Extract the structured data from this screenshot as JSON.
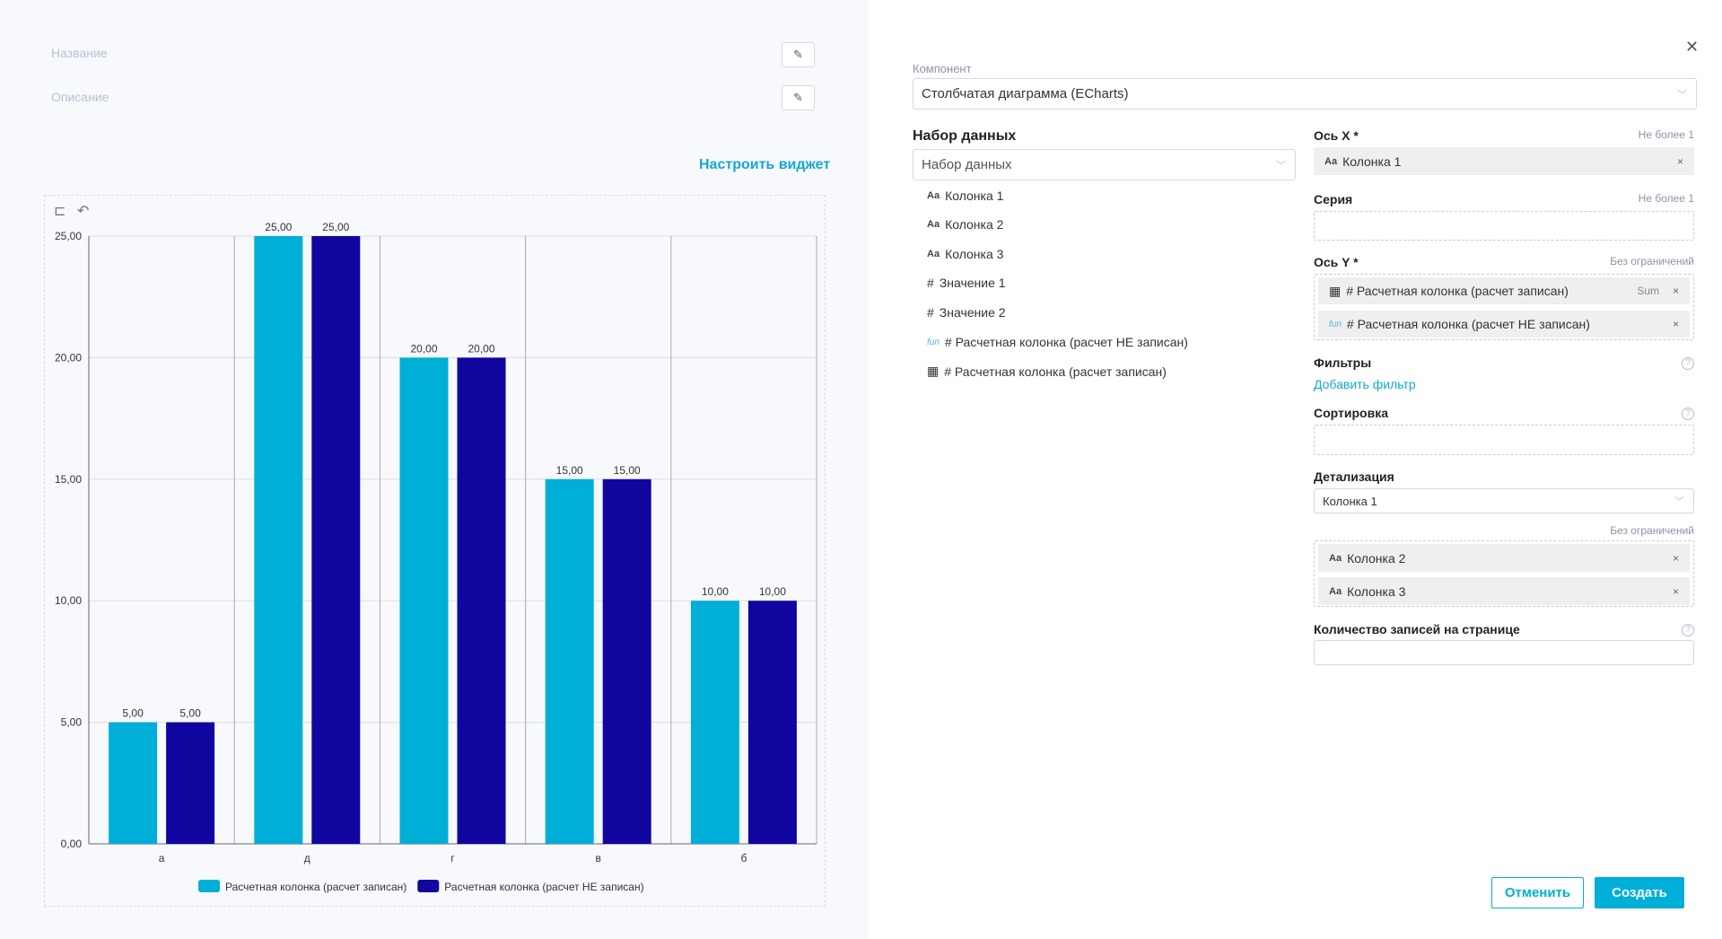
{
  "widget": {
    "title_placeholder": "Название",
    "description_placeholder": "Описание",
    "configure_link": "Настроить виджет"
  },
  "chart_data": {
    "type": "bar",
    "categories": [
      "а",
      "д",
      "г",
      "в",
      "б"
    ],
    "series": [
      {
        "name": "Расчетная колонка (расчет записан)",
        "values": [
          5,
          25,
          20,
          15,
          10
        ],
        "color": "#00afd7"
      },
      {
        "name": "Расчетная колонка (расчет НЕ записан)",
        "values": [
          5,
          25,
          20,
          15,
          10
        ],
        "color": "#10069f"
      }
    ],
    "ylim": [
      0,
      25
    ],
    "yticks": [
      "0,00",
      "5,00",
      "10,00",
      "15,00",
      "20,00",
      "25,00"
    ],
    "grid": true,
    "legend": "bottom",
    "data_labels": true
  },
  "panel": {
    "component_label": "Компонент",
    "component_value": "Столбчатая диаграмма (ECharts)",
    "dataset_heading": "Набор данных",
    "dataset_placeholder": "Набор данных",
    "fields": [
      {
        "icon": "Aa",
        "label": "Колонка 1"
      },
      {
        "icon": "Aa",
        "label": "Колонка 2"
      },
      {
        "icon": "Aa",
        "label": "Колонка 3"
      },
      {
        "icon": "#",
        "label": "Значение 1"
      },
      {
        "icon": "#",
        "label": "Значение 2"
      },
      {
        "icon": "fun",
        "label": "# Расчетная колонка (расчет НЕ записан)"
      },
      {
        "icon": "calculator",
        "label": "# Расчетная колонка (расчет записан)"
      }
    ],
    "x_axis": {
      "label": "Ось X *",
      "hint": "Не более 1",
      "chip": "Колонка 1"
    },
    "series": {
      "label": "Серия",
      "hint": "Не более 1"
    },
    "y_axis": {
      "label": "Ось Y *",
      "hint": "Без ограничений",
      "chips": [
        {
          "label": "# Расчетная колонка (расчет записан)",
          "agg": "Sum"
        },
        {
          "label": "# Расчетная колонка (расчет НЕ записан)"
        }
      ]
    },
    "filters": {
      "label": "Фильтры",
      "add": "Добавить фильтр"
    },
    "sort": {
      "label": "Сортировка"
    },
    "detail": {
      "label": "Детализация",
      "value": "Колонка 1",
      "hint": "Без ограничений",
      "chips": [
        "Колонка 2",
        "Колонка 3"
      ]
    },
    "page_size": {
      "label": "Количество записей на странице"
    },
    "cancel": "Отменить",
    "create": "Создать",
    "accent": "#00afd7"
  }
}
